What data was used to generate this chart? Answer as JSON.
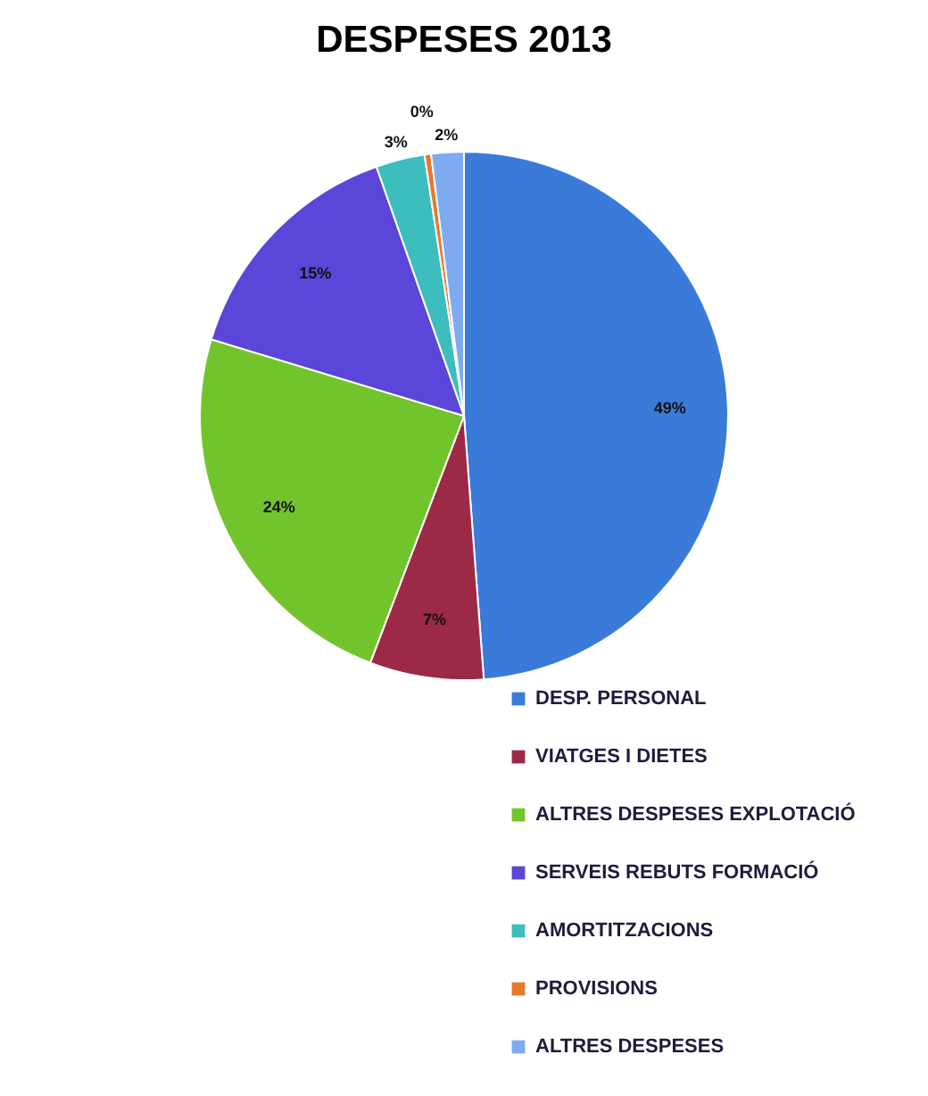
{
  "chart_data": {
    "type": "pie",
    "title": "DESPESES 2013",
    "categories": [
      "DESP. PERSONAL",
      "VIATGES I DIETES",
      "ALTRES DESPESES EXPLOTACIÓ",
      "SERVEIS REBUTS FORMACIÓ",
      "AMORTITZACIONS",
      "PROVISIONS",
      "ALTRES DESPESES"
    ],
    "values": [
      49,
      7,
      24,
      15,
      3,
      0.4,
      2
    ],
    "value_labels": [
      "49%",
      "7%",
      "24%",
      "15%",
      "3%",
      "0%",
      "2%"
    ],
    "colors": [
      "#3a7bd9",
      "#9c2a47",
      "#72c42d",
      "#5a46d8",
      "#3dbdbd",
      "#e6782b",
      "#7eaaf0"
    ],
    "legend": "bottom"
  }
}
